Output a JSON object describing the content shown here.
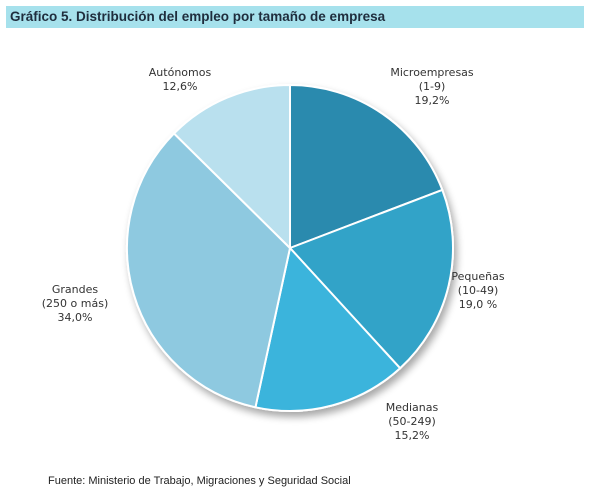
{
  "header": {
    "title": "Gráfico 5. Distribución del empleo por tamaño de empresa"
  },
  "chart_data": {
    "type": "pie",
    "title": "Gráfico 5. Distribución del empleo por tamaño de empresa",
    "slices": [
      {
        "label": "Microempresas",
        "sublabel": "(1-9)",
        "value_label": "19,2%",
        "value": 19.2,
        "color": "#2b8aae"
      },
      {
        "label": "Pequeñas",
        "sublabel": "(10-49)",
        "value_label": "19,0 %",
        "value": 19.0,
        "color": "#31a3c8"
      },
      {
        "label": "Medianas",
        "sublabel": "(50-249)",
        "value_label": "15,2%",
        "value": 15.2,
        "color": "#3bb4dc"
      },
      {
        "label": "Grandes",
        "sublabel": "(250 o más)",
        "value_label": "34,0%",
        "value": 34.0,
        "color": "#8ec9e0"
      },
      {
        "label": "Autónomos",
        "sublabel": "",
        "value_label": "12,6%",
        "value": 12.6,
        "color": "#b9e0ee"
      }
    ]
  },
  "footer": {
    "source": "Fuente: Ministerio de Trabajo, Migraciones y Seguridad Social"
  }
}
